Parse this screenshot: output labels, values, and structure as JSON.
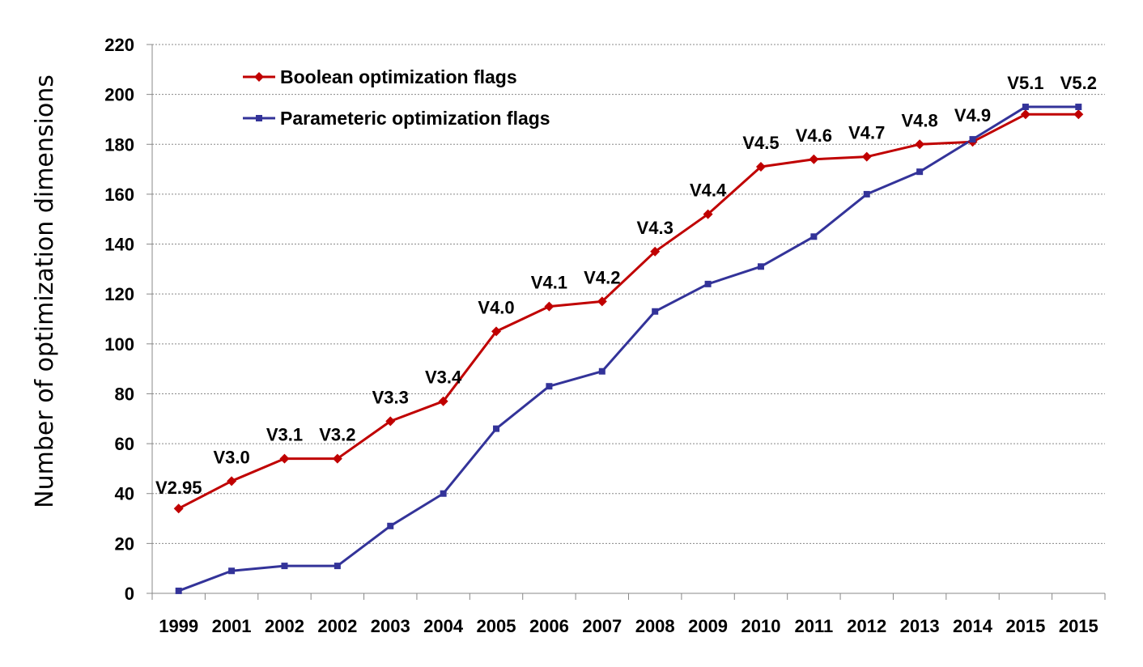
{
  "chart_data": {
    "type": "line",
    "title": "",
    "xlabel": "",
    "ylabel": "Number of optimization dimensions",
    "ylim": [
      0,
      220
    ],
    "yticks": [
      0,
      20,
      40,
      60,
      80,
      100,
      120,
      140,
      160,
      180,
      200,
      220
    ],
    "grid": "horizontal dashed",
    "legend": "top-left",
    "categories": [
      "1999",
      "2001",
      "2002",
      "2002",
      "2003",
      "2004",
      "2005",
      "2006",
      "2007",
      "2008",
      "2009",
      "2010",
      "2011",
      "2012",
      "2013",
      "2014",
      "2015",
      "2015"
    ],
    "version_labels": [
      "V2.95",
      "V3.0",
      "V3.1",
      "V3.2",
      "V3.3",
      "V3.4",
      "V4.0",
      "V4.1",
      "V4.2",
      "V4.3",
      "V4.4",
      "V4.5",
      "V4.6",
      "V4.7",
      "V4.8",
      "V4.9",
      "V5.1",
      "V5.2"
    ],
    "series": [
      {
        "name": "Boolean optimization flags",
        "color": "#c00000",
        "marker": "diamond",
        "values": [
          34,
          45,
          54,
          54,
          69,
          77,
          105,
          115,
          117,
          137,
          152,
          171,
          174,
          175,
          180,
          181,
          192,
          192
        ]
      },
      {
        "name": "Parameteric optimization flags",
        "color": "#333399",
        "marker": "square",
        "values": [
          1,
          9,
          11,
          11,
          27,
          40,
          66,
          83,
          89,
          113,
          124,
          131,
          143,
          160,
          169,
          182,
          195,
          195
        ]
      }
    ]
  }
}
